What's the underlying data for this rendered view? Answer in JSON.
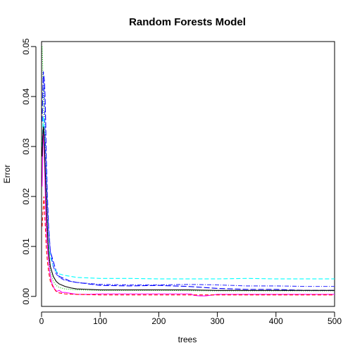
{
  "chart_data": {
    "type": "line",
    "title": "Random Forests Model",
    "xlabel": "trees",
    "ylabel": "Error",
    "xlim": [
      0,
      500
    ],
    "ylim": [
      -0.002,
      0.051
    ],
    "xticks": [
      0,
      100,
      200,
      300,
      400,
      500
    ],
    "xtick_labels": [
      "0",
      "100",
      "200",
      "300",
      "400",
      "500"
    ],
    "yticks": [
      0,
      0.01,
      0.02,
      0.03,
      0.04,
      0.05
    ],
    "ytick_labels": [
      "0.00",
      "0.01",
      "0.02",
      "0.03",
      "0.04",
      "0.05"
    ],
    "grid": false,
    "legend": "none",
    "series": [
      {
        "color": "#00cd00",
        "dash": "1,2",
        "points": [
          [
            1,
            0.05
          ],
          [
            2,
            0.046
          ],
          [
            3,
            0.04
          ],
          [
            4,
            0.034
          ],
          [
            5,
            0.03
          ],
          [
            6,
            0.025
          ],
          [
            8,
            0.018
          ],
          [
            10,
            0.012
          ],
          [
            12,
            0.008
          ],
          [
            15,
            0.005
          ],
          [
            20,
            0.003
          ],
          [
            25,
            0.0022
          ],
          [
            30,
            0.0018
          ],
          [
            40,
            0.0015
          ],
          [
            60,
            0.0013
          ],
          [
            100,
            0.0012
          ],
          [
            200,
            0.0012
          ],
          [
            300,
            0.0011
          ],
          [
            400,
            0.0011
          ],
          [
            500,
            0.0011
          ]
        ]
      },
      {
        "color": "#ff00ff",
        "dash": "",
        "points": [
          [
            1,
            0.022
          ],
          [
            2,
            0.029
          ],
          [
            3,
            0.033
          ],
          [
            4,
            0.031
          ],
          [
            5,
            0.027
          ],
          [
            6,
            0.022
          ],
          [
            7,
            0.018
          ],
          [
            8,
            0.014
          ],
          [
            10,
            0.01
          ],
          [
            12,
            0.007
          ],
          [
            15,
            0.004
          ],
          [
            18,
            0.0025
          ],
          [
            22,
            0.0015
          ],
          [
            26,
            0.001
          ],
          [
            30,
            0.0012
          ],
          [
            35,
            0.0008
          ],
          [
            40,
            0.0008
          ],
          [
            50,
            0.0006
          ],
          [
            60,
            0.0004
          ],
          [
            80,
            0.0004
          ],
          [
            100,
            0.0005
          ],
          [
            150,
            0.0005
          ],
          [
            200,
            0.0005
          ],
          [
            240,
            0.0005
          ],
          [
            255,
            0.0005
          ],
          [
            260,
            0.0002
          ],
          [
            270,
            0.0001
          ],
          [
            280,
            0.0001
          ],
          [
            300,
            0.0004
          ],
          [
            350,
            0.0004
          ],
          [
            400,
            0.0004
          ],
          [
            450,
            0.0004
          ],
          [
            500,
            0.0004
          ]
        ]
      },
      {
        "color": "#0000ff",
        "dash": "8,3",
        "points": [
          [
            1,
            0.035
          ],
          [
            2,
            0.041
          ],
          [
            3,
            0.045
          ],
          [
            4,
            0.044
          ],
          [
            5,
            0.043
          ],
          [
            6,
            0.04
          ],
          [
            7,
            0.035
          ],
          [
            8,
            0.028
          ],
          [
            10,
            0.02
          ],
          [
            12,
            0.014
          ],
          [
            15,
            0.009
          ],
          [
            20,
            0.007
          ],
          [
            25,
            0.005
          ],
          [
            30,
            0.004
          ],
          [
            40,
            0.0035
          ],
          [
            50,
            0.003
          ],
          [
            60,
            0.0028
          ],
          [
            80,
            0.0025
          ],
          [
            100,
            0.0022
          ],
          [
            150,
            0.0021
          ],
          [
            200,
            0.0022
          ],
          [
            250,
            0.002
          ],
          [
            300,
            0.0016
          ],
          [
            350,
            0.0014
          ],
          [
            400,
            0.0014
          ],
          [
            450,
            0.0012
          ],
          [
            500,
            0.0012
          ]
        ]
      },
      {
        "color": "#00ffff",
        "dash": "6,3",
        "points": [
          [
            1,
            0.03
          ],
          [
            2,
            0.033
          ],
          [
            3,
            0.036
          ],
          [
            4,
            0.035
          ],
          [
            5,
            0.032
          ],
          [
            6,
            0.028
          ],
          [
            8,
            0.02
          ],
          [
            10,
            0.014
          ],
          [
            12,
            0.01
          ],
          [
            15,
            0.008
          ],
          [
            20,
            0.006
          ],
          [
            25,
            0.005
          ],
          [
            30,
            0.0045
          ],
          [
            40,
            0.0042
          ],
          [
            50,
            0.004
          ],
          [
            60,
            0.0038
          ],
          [
            80,
            0.0037
          ],
          [
            100,
            0.0036
          ],
          [
            150,
            0.0036
          ],
          [
            200,
            0.0035
          ],
          [
            250,
            0.0035
          ],
          [
            300,
            0.0035
          ],
          [
            350,
            0.0036
          ],
          [
            400,
            0.0035
          ],
          [
            450,
            0.0035
          ],
          [
            500,
            0.0035
          ]
        ]
      },
      {
        "color": "#2e2eff",
        "dash": "6,2,1,2",
        "points": [
          [
            2,
            0.04
          ],
          [
            3,
            0.044
          ],
          [
            4,
            0.042
          ],
          [
            5,
            0.038
          ],
          [
            6,
            0.033
          ],
          [
            8,
            0.025
          ],
          [
            10,
            0.018
          ],
          [
            12,
            0.013
          ],
          [
            15,
            0.009
          ],
          [
            20,
            0.006
          ],
          [
            25,
            0.0045
          ],
          [
            30,
            0.0038
          ],
          [
            40,
            0.0032
          ],
          [
            50,
            0.003
          ],
          [
            60,
            0.0028
          ],
          [
            80,
            0.0026
          ],
          [
            100,
            0.0024
          ],
          [
            150,
            0.0023
          ],
          [
            200,
            0.0023
          ],
          [
            250,
            0.0024
          ],
          [
            300,
            0.0023
          ],
          [
            350,
            0.0021
          ],
          [
            400,
            0.0021
          ],
          [
            450,
            0.002
          ],
          [
            500,
            0.002
          ]
        ]
      },
      {
        "color": "#ff0000",
        "dash": "5,3",
        "points": [
          [
            1,
            0.014
          ],
          [
            2,
            0.016
          ],
          [
            3,
            0.018
          ],
          [
            4,
            0.02
          ],
          [
            5,
            0.018
          ],
          [
            6,
            0.015
          ],
          [
            8,
            0.01
          ],
          [
            10,
            0.007
          ],
          [
            12,
            0.005
          ],
          [
            15,
            0.003
          ],
          [
            20,
            0.0018
          ],
          [
            25,
            0.001
          ],
          [
            30,
            0.0007
          ],
          [
            40,
            0.0005
          ],
          [
            60,
            0.0004
          ],
          [
            100,
            0.0003
          ],
          [
            200,
            0.0003
          ],
          [
            300,
            0.0003
          ],
          [
            400,
            0.0003
          ],
          [
            500,
            0.0003
          ]
        ]
      },
      {
        "color": "#000000",
        "dash": "",
        "points": [
          [
            1,
            0.028
          ],
          [
            2,
            0.032
          ],
          [
            3,
            0.034
          ],
          [
            4,
            0.033
          ],
          [
            5,
            0.03
          ],
          [
            6,
            0.026
          ],
          [
            8,
            0.019
          ],
          [
            10,
            0.013
          ],
          [
            12,
            0.009
          ],
          [
            15,
            0.006
          ],
          [
            20,
            0.004
          ],
          [
            25,
            0.003
          ],
          [
            30,
            0.0025
          ],
          [
            40,
            0.002
          ],
          [
            50,
            0.0017
          ],
          [
            60,
            0.0015
          ],
          [
            80,
            0.0014
          ],
          [
            100,
            0.0013
          ],
          [
            150,
            0.0013
          ],
          [
            200,
            0.0013
          ],
          [
            250,
            0.0013
          ],
          [
            300,
            0.0012
          ],
          [
            350,
            0.0012
          ],
          [
            400,
            0.0012
          ],
          [
            450,
            0.0012
          ],
          [
            500,
            0.0012
          ]
        ]
      }
    ]
  }
}
